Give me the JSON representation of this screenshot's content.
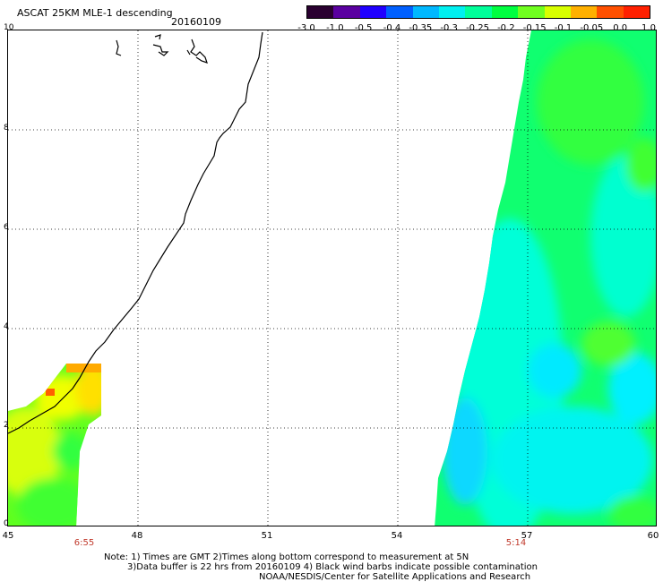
{
  "title": "ASCAT 25KM MLE-1 descending",
  "date": "20160109",
  "colorbar": {
    "labels": [
      "-3.0",
      "-1.0",
      "-0.5",
      "-0.4",
      "-0.35",
      "-0.3",
      "-0.25",
      "-0.2",
      "-0.15",
      "-0.1",
      "-0.05",
      "0.0",
      "1.0"
    ],
    "colors": [
      "#2a0030",
      "#5a00a0",
      "#2000ff",
      "#0060ff",
      "#00b8ff",
      "#00f0f0",
      "#00ff9a",
      "#00ff40",
      "#70ff20",
      "#d8ff00",
      "#ffb000",
      "#ff5000",
      "#ff2000"
    ]
  },
  "y_ticks": [
    "0",
    "2",
    "4",
    "6",
    "8",
    "10"
  ],
  "x_ticks": [
    "45",
    "48",
    "51",
    "54",
    "57",
    "60"
  ],
  "pass_times": [
    "6:55",
    "5:14"
  ],
  "notes": {
    "line1": "Note: 1) Times are GMT 2)Times along bottom correspond to measurement at 5N",
    "line2": "3)Data buffer is 22 hrs from 20160109 4) Black wind barbs indicate possible contamination",
    "line3": "NOAA/NESDIS/Center for Satellite Applications and Research"
  }
}
